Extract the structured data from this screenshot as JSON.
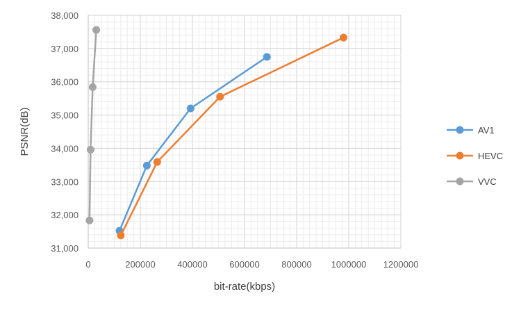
{
  "chart_data": {
    "type": "scatter",
    "title": "",
    "xlabel": "bit-rate(kbps)",
    "ylabel": "PSNR(dB)",
    "xlim": [
      0,
      1200000
    ],
    "ylim": [
      31000,
      38000
    ],
    "x_ticks": [
      "0",
      "200000",
      "400000",
      "600000",
      "800000",
      "1000000",
      "1200000"
    ],
    "y_ticks": [
      "31,000",
      "32,000",
      "33,000",
      "34,000",
      "35,000",
      "36,000",
      "37,000",
      "38,000"
    ],
    "grid": true,
    "legend_position": "right",
    "series": [
      {
        "name": "AV1",
        "color": "#5B9BD5",
        "x": [
          120000,
          225000,
          393000,
          686000
        ],
        "y": [
          31520,
          33480,
          35200,
          36750
        ]
      },
      {
        "name": "HEVC",
        "color": "#ED7D31",
        "x": [
          125000,
          265000,
          506000,
          980000
        ],
        "y": [
          31380,
          33590,
          35550,
          37330
        ]
      },
      {
        "name": "VVC",
        "color": "#A5A5A5",
        "x": [
          5000,
          9000,
          17000,
          31000
        ],
        "y": [
          31830,
          33960,
          35840,
          37560
        ]
      }
    ]
  }
}
